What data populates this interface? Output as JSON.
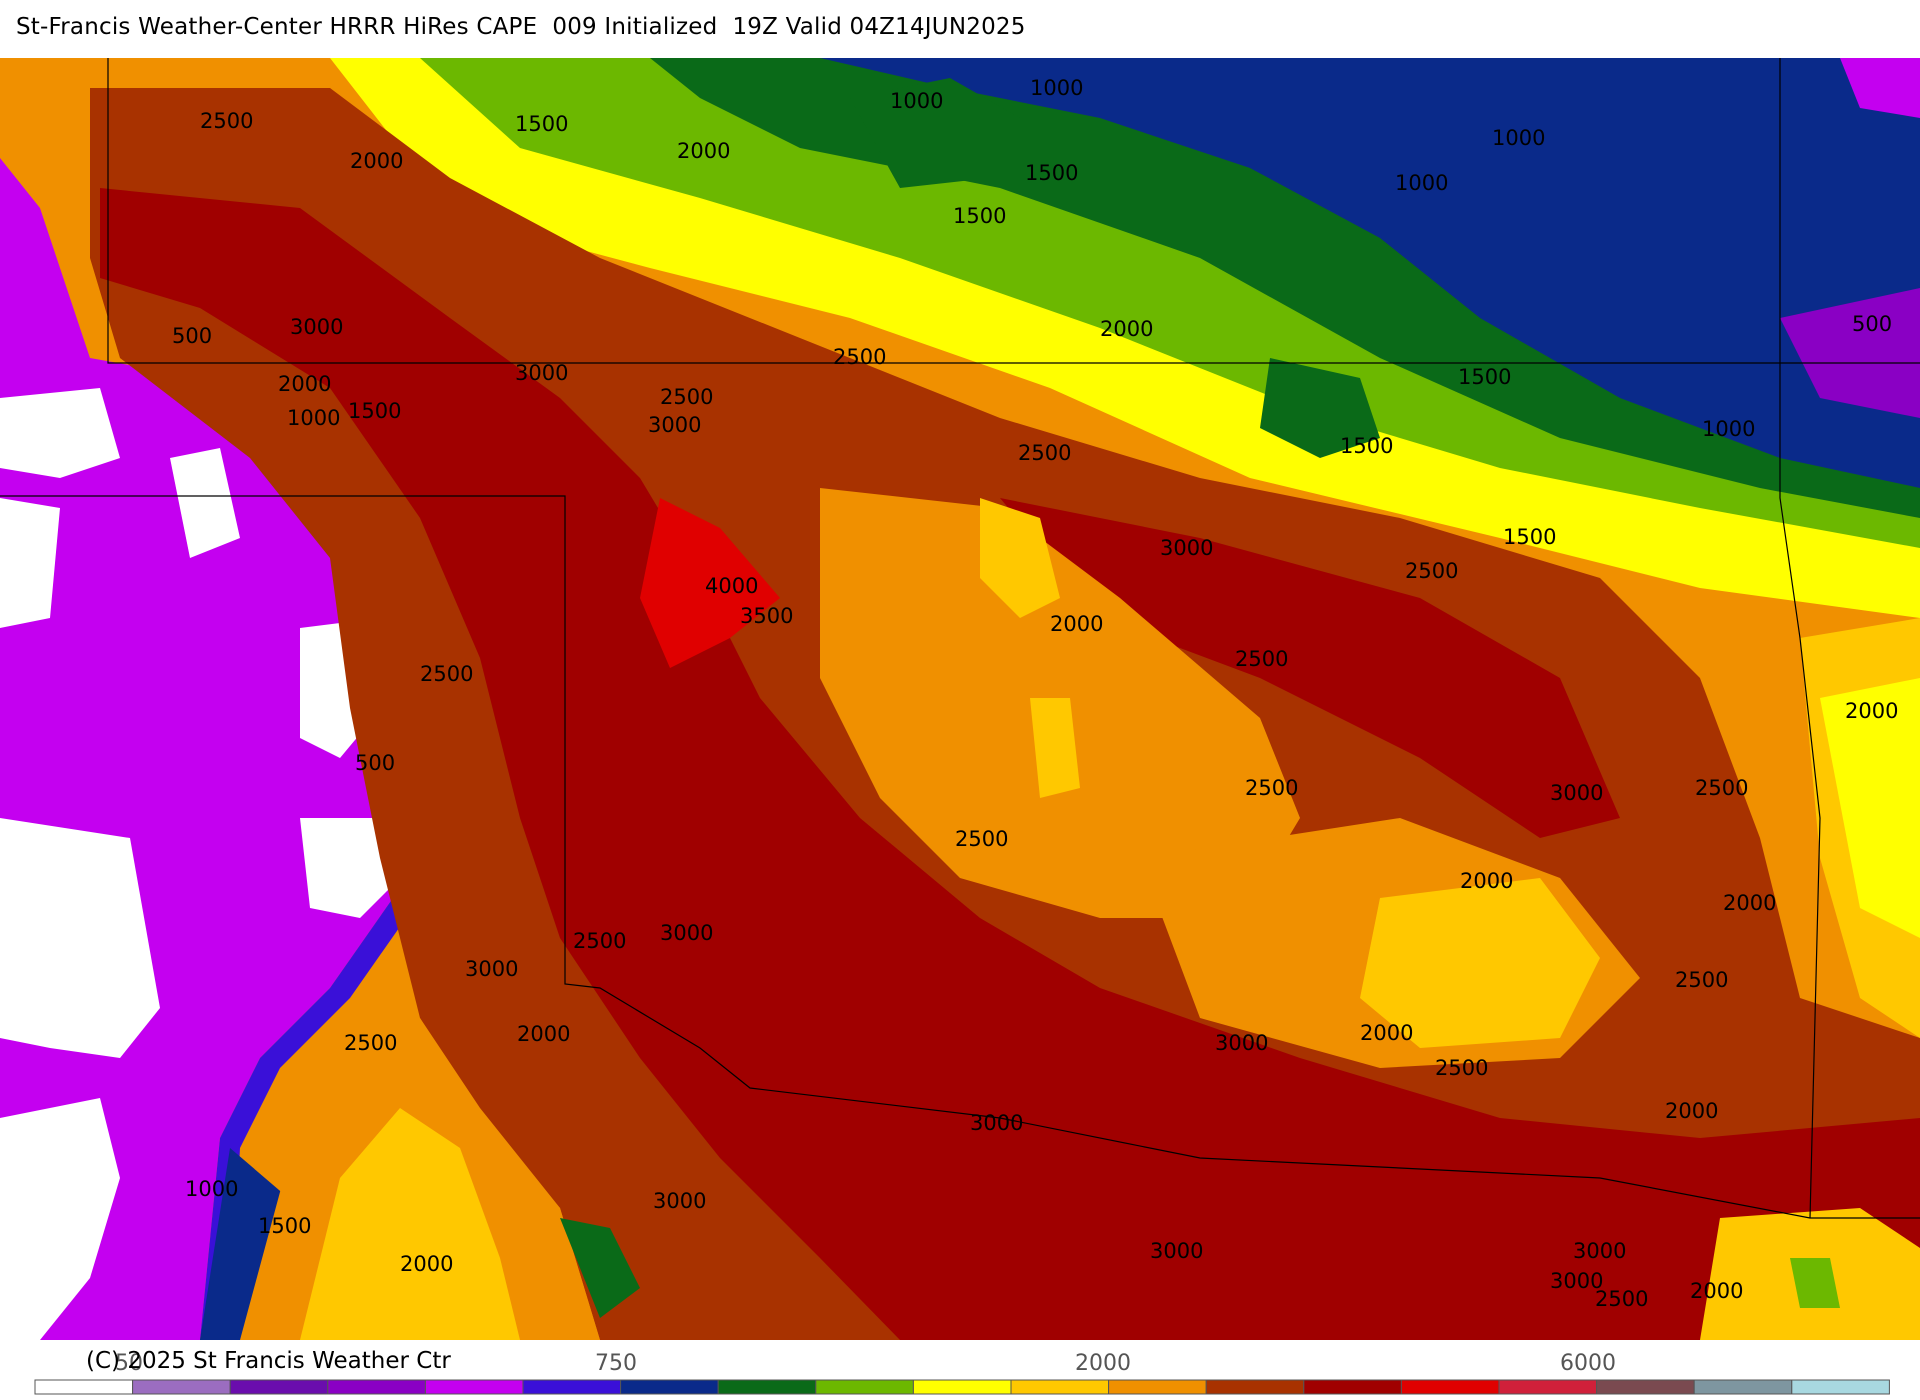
{
  "title": "St-Francis Weather-Center HRRR HiRes CAPE  009 Initialized  19Z Valid 04Z14JUN2025",
  "copyright": "(C) 2025 St Francis Weather Ctr",
  "colors": {
    "c0": "#ffffff",
    "c1": "#9b6dc0",
    "c2": "#6a0dad",
    "c3": "#8a00c4",
    "c4": "#c400f0",
    "c5": "#3a10d8",
    "c6": "#0a2a8a",
    "c7": "#0a6a18",
    "c8": "#6cb800",
    "c9": "#ffff00",
    "c10": "#ffc800",
    "c11": "#f09000",
    "c12": "#a83200",
    "c13": "#a00000",
    "c14": "#e00000",
    "c15": "#d0203a",
    "c16": "#7a4a50",
    "c17": "#7e96a0",
    "c18": "#a8d8e0"
  },
  "colorbar": {
    "tick_labels": [
      "50",
      "750",
      "2000",
      "6000"
    ]
  },
  "contour_labels": [
    "2500",
    "2000",
    "1500",
    "2000",
    "1000",
    "1000",
    "1500",
    "1500",
    "1000",
    "1000",
    "3000",
    "500",
    "3000",
    "2000",
    "1500",
    "1000",
    "2500",
    "2500",
    "3000",
    "2000",
    "2500",
    "1500",
    "1500",
    "1000",
    "500",
    "4000",
    "3500",
    "3000",
    "2500",
    "1500",
    "2000",
    "2500",
    "2500",
    "500",
    "2500",
    "2000",
    "3000",
    "2500",
    "2000",
    "2500",
    "2000",
    "3000",
    "2500",
    "2000",
    "3000",
    "2000",
    "2500",
    "2500",
    "3000",
    "3000",
    "2500",
    "2000",
    "3000",
    "3000",
    "1000",
    "1500",
    "2000",
    "3000",
    "3000",
    "2500",
    "2000"
  ]
}
